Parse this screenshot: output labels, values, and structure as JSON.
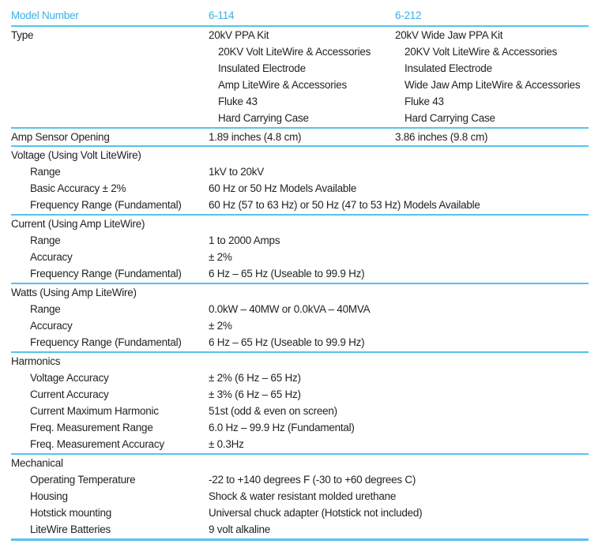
{
  "colors": {
    "accent_blue": "#3BB0E6",
    "rule_blue": "#56C2EC",
    "text": "#231F20"
  },
  "header": {
    "model_number_label": "Model Number",
    "model_1": "6-114",
    "model_2": "6-212"
  },
  "type_section": {
    "label": "Type",
    "model_1": {
      "title": "20kV PPA Kit",
      "items": [
        "20KV Volt LiteWire & Accessories",
        "Insulated Electrode",
        "Amp LiteWire & Accessories",
        "Fluke 43",
        "Hard Carrying Case"
      ]
    },
    "model_2": {
      "title": "20kV Wide Jaw PPA Kit",
      "items": [
        "20KV Volt LiteWire & Accessories",
        "Insulated Electrode",
        "Wide Jaw Amp LiteWire & Accessories",
        "Fluke 43",
        "Hard Carrying Case"
      ]
    }
  },
  "amp_sensor_row": {
    "label": "Amp Sensor Opening",
    "model_1": "1.89 inches (4.8 cm)",
    "model_2": "3.86 inches (9.8 cm)"
  },
  "sections": [
    {
      "title": "Voltage (Using Volt LiteWire)",
      "rows": [
        {
          "label": "Range",
          "value": "1kV to 20kV"
        },
        {
          "label": "Basic Accuracy ± 2%",
          "value": "60 Hz or 50 Hz Models Available"
        },
        {
          "label": "Frequency Range (Fundamental)",
          "value": "60 Hz (57 to 63 Hz) or 50 Hz (47 to 53 Hz) Models Available"
        }
      ]
    },
    {
      "title": "Current (Using Amp LiteWire)",
      "rows": [
        {
          "label": "Range",
          "value": "1 to 2000 Amps"
        },
        {
          "label": "Accuracy",
          "value": "± 2%"
        },
        {
          "label": "Frequency Range (Fundamental)",
          "value": "6 Hz – 65 Hz (Useable to 99.9 Hz)"
        }
      ]
    },
    {
      "title": "Watts (Using Amp LiteWire)",
      "rows": [
        {
          "label": "Range",
          "value": "0.0kW – 40MW or 0.0kVA – 40MVA"
        },
        {
          "label": "Accuracy",
          "value": "± 2%"
        },
        {
          "label": "Frequency Range (Fundamental)",
          "value": "6 Hz – 65 Hz (Useable to 99.9 Hz)"
        }
      ]
    },
    {
      "title": "Harmonics",
      "rows": [
        {
          "label": "Voltage Accuracy",
          "value": "± 2% (6 Hz – 65 Hz)"
        },
        {
          "label": "Current Accuracy",
          "value": "± 3% (6 Hz – 65 Hz)"
        },
        {
          "label": "Current Maximum Harmonic",
          "value": "51st (odd & even on screen)"
        },
        {
          "label": "Freq. Measurement Range",
          "value": "6.0 Hz – 99.9 Hz (Fundamental)"
        },
        {
          "label": "Freq. Measurement Accuracy",
          "value": "± 0.3Hz"
        }
      ]
    },
    {
      "title": "Mechanical",
      "rows": [
        {
          "label": "Operating Temperature",
          "value": "-22 to +140 degrees F (-30 to +60 degrees C)"
        },
        {
          "label": "Housing",
          "value": "Shock & water resistant molded urethane"
        },
        {
          "label": "Hotstick mounting",
          "value": "Universal chuck adapter (Hotstick not included)"
        },
        {
          "label": "LiteWire Batteries",
          "value": "9 volt alkaline"
        }
      ]
    }
  ]
}
